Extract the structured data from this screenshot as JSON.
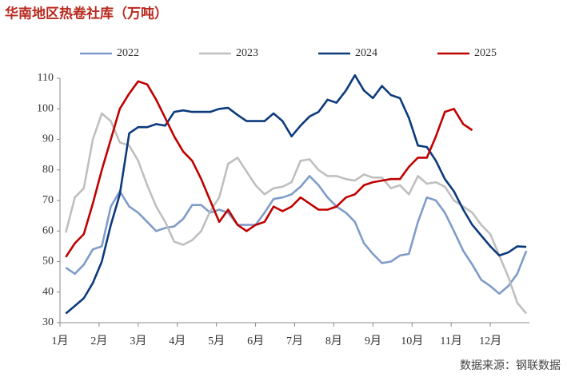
{
  "chart_data": {
    "type": "line",
    "title": "华南地区热卷社库（万吨）",
    "source": "数据来源：钢联数据",
    "x": [
      1.15,
      1.38,
      1.61,
      1.84,
      2.07,
      2.3,
      2.53,
      2.77,
      3.0,
      3.23,
      3.46,
      3.69,
      3.92,
      4.15,
      4.38,
      4.61,
      4.84,
      5.07,
      5.3,
      5.54,
      5.77,
      6.0,
      6.23,
      6.46,
      6.69,
      6.92,
      7.15,
      7.38,
      7.61,
      7.84,
      8.07,
      8.31,
      8.54,
      8.77,
      9.0,
      9.23,
      9.46,
      9.69,
      9.92,
      10.15,
      10.38,
      10.61,
      10.84,
      11.07,
      11.31,
      11.54,
      11.77,
      12.0,
      12.23,
      12.46,
      12.69,
      12.92
    ],
    "series": [
      {
        "name": "2022",
        "color": "#7f9cc9",
        "values": [
          48,
          46,
          49,
          54,
          55,
          68,
          73,
          68,
          66,
          63,
          60,
          61,
          61.5,
          64,
          68.5,
          68.5,
          66,
          67,
          66,
          62,
          62,
          62,
          66,
          70.5,
          71,
          72,
          74.5,
          78,
          75,
          71,
          68,
          66,
          63,
          56,
          52.5,
          49.5,
          50,
          52,
          52.5,
          63,
          71,
          70,
          66,
          60,
          53.5,
          49,
          44,
          42,
          39.5,
          42,
          46,
          53.5
        ]
      },
      {
        "name": "2023",
        "color": "#bfbfbf",
        "values": [
          59.5,
          71,
          74,
          90,
          98.5,
          96,
          89,
          88,
          83,
          75,
          68,
          63,
          56.5,
          55.5,
          57,
          60,
          66.5,
          71,
          82,
          84,
          79.5,
          75,
          72,
          74,
          74.5,
          76,
          83,
          83.5,
          80,
          78,
          78,
          77,
          76.5,
          78.5,
          77.5,
          77.5,
          74,
          75,
          72,
          78,
          75.5,
          76,
          74.5,
          70,
          68,
          66,
          62,
          59,
          52,
          45,
          36.5,
          33
        ]
      },
      {
        "name": "2024",
        "color": "#0c3a7c",
        "values": [
          33,
          35.5,
          38,
          43,
          50,
          62,
          72,
          92,
          94,
          94,
          95,
          94.5,
          99,
          99.5,
          99,
          99,
          99,
          100,
          100.3,
          98,
          96,
          96,
          96,
          98.5,
          96,
          91,
          94.5,
          97.5,
          99,
          103,
          102,
          106,
          111,
          106,
          103.5,
          107.5,
          104.5,
          103.5,
          97,
          88,
          87.5,
          83,
          77,
          73,
          67,
          62,
          58.5,
          55,
          52,
          53,
          55,
          54.8
        ]
      },
      {
        "name": "2025",
        "color": "#c00000",
        "values": [
          51.5,
          56,
          59,
          69,
          80,
          90,
          100,
          105,
          109,
          108,
          103,
          97,
          91,
          86,
          83,
          77,
          70,
          63,
          67,
          62,
          60,
          62,
          63,
          68,
          66.5,
          68,
          71,
          69,
          67,
          67,
          68,
          71,
          72,
          75,
          76,
          76.5,
          77,
          77,
          81,
          84,
          84,
          91,
          99,
          100,
          95,
          93,
          null,
          null,
          null,
          null,
          null,
          null
        ]
      }
    ],
    "xlim": [
      1,
      13
    ],
    "xticks": [
      {
        "value": 1,
        "label": "1月"
      },
      {
        "value": 2,
        "label": "2月"
      },
      {
        "value": 3,
        "label": "3月"
      },
      {
        "value": 4,
        "label": "4月"
      },
      {
        "value": 5,
        "label": "5月"
      },
      {
        "value": 6,
        "label": "6月"
      },
      {
        "value": 7,
        "label": "7月"
      },
      {
        "value": 8,
        "label": "8月"
      },
      {
        "value": 9,
        "label": "9月"
      },
      {
        "value": 10,
        "label": "10月"
      },
      {
        "value": 11,
        "label": "11月"
      },
      {
        "value": 12,
        "label": "12月"
      }
    ],
    "ylim": [
      30,
      110
    ],
    "yticks": [
      30,
      40,
      50,
      60,
      70,
      80,
      90,
      100,
      110
    ],
    "grid": false,
    "legend": "top"
  }
}
